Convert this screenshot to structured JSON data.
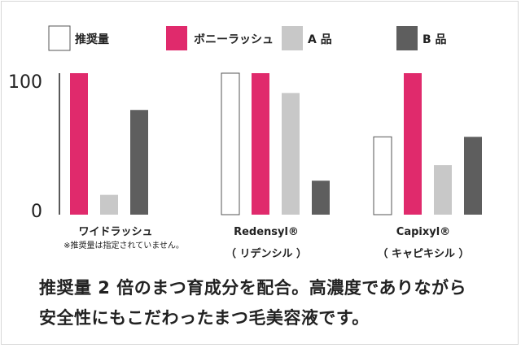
{
  "chart_data": {
    "type": "bar",
    "title": "",
    "xlabel": "",
    "ylabel": "",
    "ylim": [
      0,
      100
    ],
    "y_ticks": [
      0,
      100
    ],
    "y_tick_labels": [
      "0",
      "100"
    ],
    "legend_position": "top",
    "categories": [
      "ワイドラッシュ",
      "Redensyl®",
      "Capixyl®"
    ],
    "category_sublabels": [
      "※推奨量は指定されていません。",
      "（ リデンシル ）",
      "（ キャピキシル ）"
    ],
    "series": [
      {
        "name": "推奨量",
        "values": [
          null,
          100,
          55
        ],
        "color": "#ffffff",
        "stroke": "#555555"
      },
      {
        "name": "ボニーラッシュ",
        "values": [
          100,
          100,
          100
        ],
        "color": "#e02a6c",
        "stroke": "none"
      },
      {
        "name": "A 品",
        "values": [
          14,
          86,
          35
        ],
        "color": "#c8c8c8",
        "stroke": "none"
      },
      {
        "name": "B 品",
        "values": [
          74,
          24,
          55
        ],
        "color": "#5e5e5e",
        "stroke": "none"
      }
    ]
  },
  "caption": {
    "line1": "推奨量 2 倍のまつ育成分を配合。高濃度でありながら",
    "line2": "安全性にもこだわったまつ毛美容液です。"
  }
}
